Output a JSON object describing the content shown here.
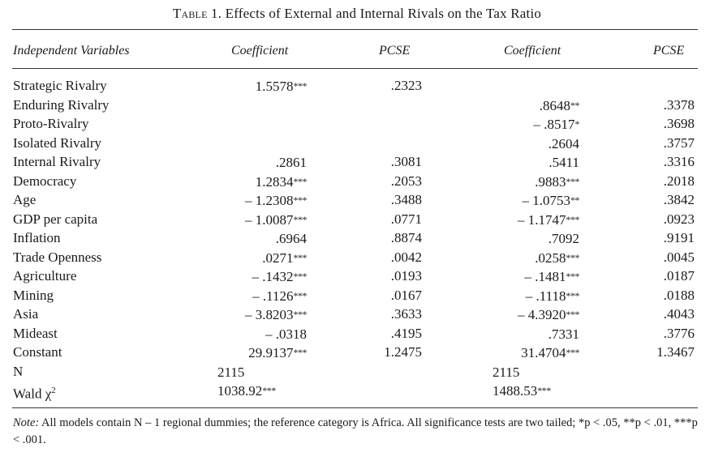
{
  "table": {
    "caption_prefix": "Table 1.",
    "caption_text": "Effects of External and Internal Rivals on the Tax Ratio",
    "headers": [
      "Independent Variables",
      "Coefficient",
      "PCSE",
      "Coefficient",
      "PCSE"
    ],
    "rows": [
      {
        "label": "Strategic Rivalry",
        "c1": "1.5578",
        "s1": "***",
        "p1": ".2323",
        "c2": "",
        "s2": "",
        "p2": ""
      },
      {
        "label": "Enduring Rivalry",
        "c1": "",
        "s1": "",
        "p1": "",
        "c2": ".8648",
        "s2": "**",
        "p2": ".3378"
      },
      {
        "label": "Proto-Rivalry",
        "c1": "",
        "s1": "",
        "p1": "",
        "c2": "– .8517",
        "s2": "*",
        "p2": ".3698"
      },
      {
        "label": "Isolated Rivalry",
        "c1": "",
        "s1": "",
        "p1": "",
        "c2": ".2604",
        "s2": "",
        "p2": ".3757"
      },
      {
        "label": "Internal Rivalry",
        "c1": ".2861",
        "s1": "",
        "p1": ".3081",
        "c2": ".5411",
        "s2": "",
        "p2": ".3316"
      },
      {
        "label": "Democracy",
        "c1": "1.2834",
        "s1": "***",
        "p1": ".2053",
        "c2": ".9883",
        "s2": "***",
        "p2": ".2018"
      },
      {
        "label": "Age",
        "c1": "– 1.2308",
        "s1": "***",
        "p1": ".3488",
        "c2": "– 1.0753",
        "s2": "**",
        "p2": ".3842"
      },
      {
        "label": "GDP per capita",
        "c1": "– 1.0087",
        "s1": "***",
        "p1": ".0771",
        "c2": "– 1.1747",
        "s2": "***",
        "p2": ".0923"
      },
      {
        "label": "Inflation",
        "c1": ".6964",
        "s1": "",
        "p1": ".8874",
        "c2": ".7092",
        "s2": "",
        "p2": ".9191"
      },
      {
        "label": "Trade Openness",
        "c1": ".0271",
        "s1": "***",
        "p1": ".0042",
        "c2": ".0258",
        "s2": "***",
        "p2": ".0045"
      },
      {
        "label": "Agriculture",
        "c1": "– .1432",
        "s1": "***",
        "p1": ".0193",
        "c2": "– .1481",
        "s2": "***",
        "p2": ".0187"
      },
      {
        "label": "Mining",
        "c1": "– .1126",
        "s1": "***",
        "p1": ".0167",
        "c2": "– .1118",
        "s2": "***",
        "p2": ".0188"
      },
      {
        "label": "Asia",
        "c1": "– 3.8203",
        "s1": "***",
        "p1": ".3633",
        "c2": "– 4.3920",
        "s2": "***",
        "p2": ".4043"
      },
      {
        "label": "Mideast",
        "c1": "– .0318",
        "s1": "",
        "p1": ".4195",
        "c2": ".7331",
        "s2": "",
        "p2": ".3776"
      },
      {
        "label": "Constant",
        "c1": "29.9137",
        "s1": "***",
        "p1": "1.2475",
        "c2": "31.4704",
        "s2": "***",
        "p2": "1.3467"
      },
      {
        "label": "N",
        "c1": "2115",
        "s1": "",
        "p1": "",
        "c2": "2115",
        "s2": "",
        "p2": ""
      },
      {
        "label": "Wald χ",
        "sup": "2",
        "c1": "1038.92",
        "s1": "***",
        "p1": "",
        "c2": "1488.53",
        "s2": "***",
        "p2": ""
      }
    ],
    "note_label": "Note:",
    "note_text": "All models contain N – 1 regional dummies; the reference category is Africa. All significance tests are two tailed; *p < .05, **p < .01, ***p < .001."
  }
}
